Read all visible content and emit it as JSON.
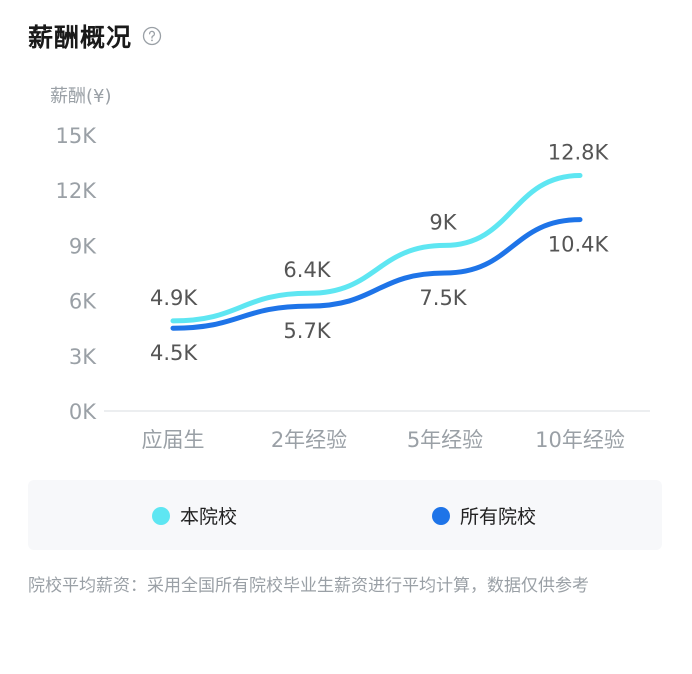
{
  "header": {
    "title": "薪酬概况"
  },
  "colors": {
    "series_school": "#5ee6f2",
    "series_all": "#1e74e8",
    "axis_text": "#9aa0a6",
    "label_text": "#555555"
  },
  "chart_data": {
    "type": "line",
    "title": "",
    "ylabel": "薪酬(¥)",
    "xlabel": "",
    "categories": [
      "应届生",
      "2年经验",
      "5年经验",
      "10年经验"
    ],
    "ylim": [
      0,
      15000
    ],
    "yticks": [
      {
        "value": 0,
        "label": "0K"
      },
      {
        "value": 3000,
        "label": "3K"
      },
      {
        "value": 6000,
        "label": "6K"
      },
      {
        "value": 9000,
        "label": "9K"
      },
      {
        "value": 12000,
        "label": "12K"
      },
      {
        "value": 15000,
        "label": "15K"
      }
    ],
    "grid": false,
    "series": [
      {
        "name": "本院校",
        "values": [
          4900,
          6400,
          9000,
          12800
        ],
        "labels": [
          "4.9K",
          "6.4K",
          "9K",
          "12.8K"
        ],
        "color": "#5ee6f2",
        "label_position": "above"
      },
      {
        "name": "所有院校",
        "values": [
          4500,
          5700,
          7500,
          10400
        ],
        "labels": [
          "4.5K",
          "5.7K",
          "7.5K",
          "10.4K"
        ],
        "color": "#1e74e8",
        "label_position": "below"
      }
    ],
    "legend": "bottom"
  },
  "footnote": "院校平均薪资：采用全国所有院校毕业生薪资进行平均计算，数据仅供参考"
}
